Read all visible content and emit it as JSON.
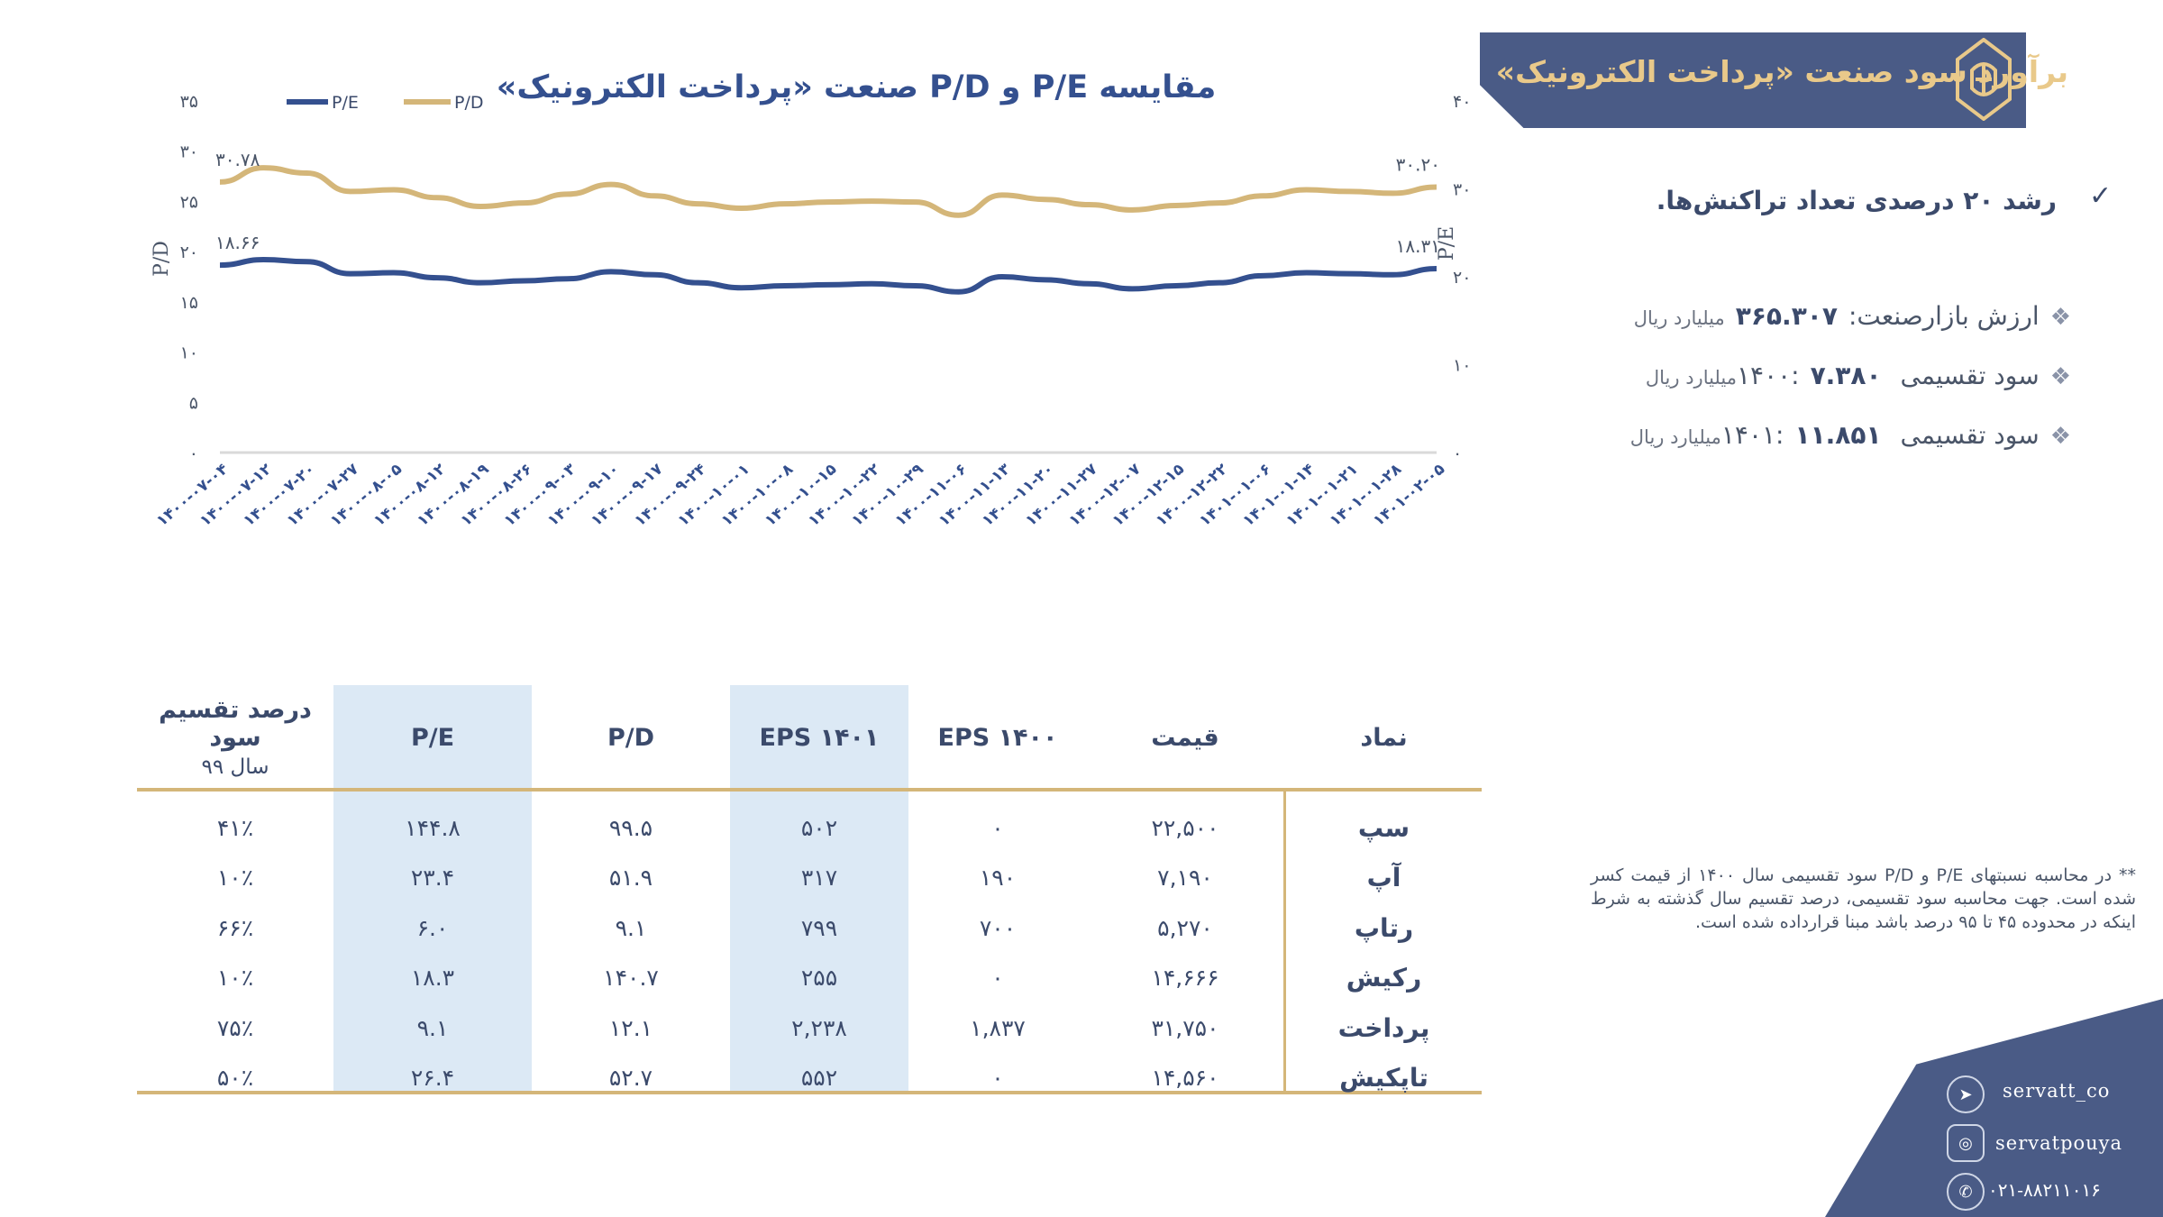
{
  "header": {
    "title": "برآورد سود صنعت «پرداخت الکترونیک»"
  },
  "bullets": {
    "growth": "رشد ۲۰ درصدی تعداد تراکنش‌ها.",
    "items": [
      {
        "label": "ارزش بازارصنعت:",
        "value": "۳۶۵.۳۰۷",
        "unit": "میلیارد ریال"
      },
      {
        "label": "سود تقسیمی ۱۴۰۰:",
        "value": "۷.۳۸۰",
        "unit": "میلیارد ریال"
      },
      {
        "label": "سود تقسیمی ۱۴۰۱:",
        "value": "۱۱.۸۵۱",
        "unit": "میلیارد ریال"
      }
    ]
  },
  "footnote": "** در محاسبه نسبتهای P/E و P/D سود تقسیمی سال ۱۴۰۰ از قیمت کسر شده است. جهت محاسبه سود تقسیمی، درصد تقسیم سال گذشته به شرط اینکه در محدوده ۴۵ تا ۹۵ درصد باشد مبنا قرارداده شده است.",
  "table": {
    "headers": {
      "symbol": "نماد",
      "price": "قیمت",
      "eps1400": "EPS ۱۴۰۰",
      "eps1401": "EPS ۱۴۰۱",
      "pd": "P/D",
      "pe": "P/E",
      "payout": "درصد تقسیم سود",
      "payout_sub": "سال ۹۹"
    },
    "rows": [
      {
        "symbol": "سپ",
        "price": "۲۲,۵۰۰",
        "eps1400": "۰",
        "eps1401": "۵۰۲",
        "pd": "۹۹.۵",
        "pe": "۱۴۴.۸",
        "payout": "۴۱٪"
      },
      {
        "symbol": "آپ",
        "price": "۷,۱۹۰",
        "eps1400": "۱۹۰",
        "eps1401": "۳۱۷",
        "pd": "۵۱.۹",
        "pe": "۲۳.۴",
        "payout": "۱۰٪"
      },
      {
        "symbol": "رتاپ",
        "price": "۵,۲۷۰",
        "eps1400": "۷۰۰",
        "eps1401": "۷۹۹",
        "pd": "۹.۱",
        "pe": "۶.۰",
        "payout": "۶۶٪"
      },
      {
        "symbol": "رکیش",
        "price": "۱۴,۶۶۶",
        "eps1400": "۰",
        "eps1401": "۲۵۵",
        "pd": "۱۴۰.۷",
        "pe": "۱۸.۳",
        "payout": "۱۰٪"
      },
      {
        "symbol": "پرداخت",
        "price": "۳۱,۷۵۰",
        "eps1400": "۱,۸۳۷",
        "eps1401": "۲,۲۳۸",
        "pd": "۱۲.۱",
        "pe": "۹.۱",
        "payout": "۷۵٪"
      },
      {
        "symbol": "تاپکیش",
        "price": "۱۴,۵۶۰",
        "eps1400": "۰",
        "eps1401": "۵۵۲",
        "pd": "۵۲.۷",
        "pe": "۲۶.۴",
        "payout": "۵۰٪"
      }
    ]
  },
  "social": {
    "telegram": "servatt_co",
    "instagram": "servatpouya",
    "phone": "۰۲۱-۸۸۲۱۱۰۱۶"
  },
  "chart_data": {
    "type": "line",
    "title": "مقایسه P/E و P/D صنعت «پرداخت الکترونیک»",
    "ylabel_left": "P/D",
    "ylabel_right": "P/E",
    "ylim_left": [
      0,
      35
    ],
    "ylim_right": [
      0,
      40
    ],
    "yticks_left": [
      "۰",
      "۵",
      "۱۰",
      "۱۵",
      "۲۰",
      "۲۵",
      "۳۰",
      "۳۵"
    ],
    "yticks_right": [
      "۰",
      "۱۰",
      "۲۰",
      "۳۰",
      "۴۰"
    ],
    "categories": [
      "۱۴۰۰-۰۷-۰۴",
      "۱۴۰۰-۰۷-۱۲",
      "۱۴۰۰-۰۷-۲۰",
      "۱۴۰۰-۰۷-۲۷",
      "۱۴۰۰-۰۸-۰۵",
      "۱۴۰۰-۰۸-۱۲",
      "۱۴۰۰-۰۸-۱۹",
      "۱۴۰۰-۰۸-۲۶",
      "۱۴۰۰-۰۹-۰۳",
      "۱۴۰۰-۰۹-۱۰",
      "۱۴۰۰-۰۹-۱۷",
      "۱۴۰۰-۰۹-۲۴",
      "۱۴۰۰-۱۰-۰۱",
      "۱۴۰۰-۱۰-۰۸",
      "۱۴۰۰-۱۰-۱۵",
      "۱۴۰۰-۱۰-۲۲",
      "۱۴۰۰-۱۰-۲۹",
      "۱۴۰۰-۱۱-۰۶",
      "۱۴۰۰-۱۱-۱۳",
      "۱۴۰۰-۱۱-۲۰",
      "۱۴۰۰-۱۱-۲۷",
      "۱۴۰۰-۱۲-۰۷",
      "۱۴۰۰-۱۲-۱۵",
      "۱۴۰۰-۱۲-۲۲",
      "۱۴۰۱-۰۱-۰۶",
      "۱۴۰۱-۰۱-۱۴",
      "۱۴۰۱-۰۱-۲۱",
      "۱۴۰۱-۰۱-۲۸",
      "۱۴۰۱-۰۲-۰۵"
    ],
    "series": [
      {
        "name": "P/E",
        "axis": "left",
        "color": "#34508f",
        "start_label": "۱۸.۶۶",
        "end_label": "۱۸.۳۱",
        "values": [
          18.66,
          19.2,
          19.0,
          17.8,
          17.9,
          17.4,
          16.9,
          17.1,
          17.3,
          18.0,
          17.7,
          16.9,
          16.4,
          16.6,
          16.7,
          16.8,
          16.6,
          16.0,
          17.5,
          17.2,
          16.8,
          16.3,
          16.6,
          16.9,
          17.6,
          17.9,
          17.8,
          17.7,
          18.31
        ]
      },
      {
        "name": "P/D",
        "axis": "right",
        "color": "#d4b679",
        "start_label": "۳۰.۷۸",
        "end_label": "۳۰.۲۰",
        "values": [
          30.78,
          32.4,
          31.8,
          29.7,
          29.9,
          29.0,
          28.0,
          28.4,
          29.4,
          30.5,
          29.2,
          28.3,
          27.8,
          28.3,
          28.5,
          28.6,
          28.5,
          27.0,
          29.3,
          28.8,
          28.2,
          27.6,
          28.1,
          28.4,
          29.2,
          29.9,
          29.7,
          29.5,
          30.2
        ]
      }
    ]
  }
}
